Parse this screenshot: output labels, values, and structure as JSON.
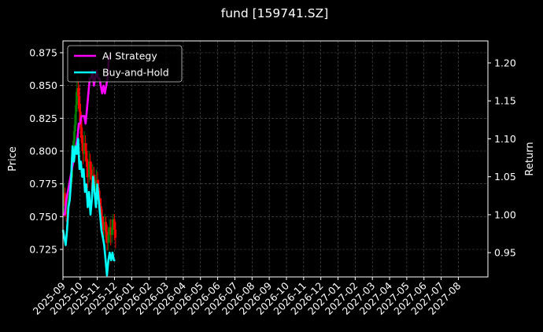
{
  "chart_data": {
    "type": "line",
    "title": "fund [159741.SZ]",
    "ylabel": "Price",
    "y2label": "Return",
    "ylim": [
      0.704,
      0.884
    ],
    "y2lim": [
      0.918,
      1.229
    ],
    "yticks": [
      "0.725",
      "0.750",
      "0.775",
      "0.800",
      "0.825",
      "0.850",
      "0.875"
    ],
    "y2ticks": [
      "0.95",
      "1.00",
      "1.05",
      "1.10",
      "1.15",
      "1.20"
    ],
    "xlim": [
      0,
      24.72
    ],
    "xticks": [
      "2025-09",
      "2025-10",
      "2025-11",
      "2025-12",
      "2026-01",
      "2026-02",
      "2026-03",
      "2026-04",
      "2026-05",
      "2026-06",
      "2026-07",
      "2026-08",
      "2026-09",
      "2026-10",
      "2026-11",
      "2026-12",
      "2027-01",
      "2027-02",
      "2027-03",
      "2027-04",
      "2027-05",
      "2027-06",
      "2027-07",
      "2027-08"
    ],
    "grid": true,
    "legend_position": "top-left",
    "background": "#000000",
    "up_color": "#008000",
    "down_color": "#ff0000",
    "candles": [
      [
        0.05,
        0.762,
        0.768,
        0.775,
        0.752
      ],
      [
        0.12,
        0.768,
        0.758,
        0.772,
        0.75
      ],
      [
        0.19,
        0.758,
        0.752,
        0.764,
        0.746
      ],
      [
        0.26,
        0.752,
        0.76,
        0.768,
        0.748
      ],
      [
        0.33,
        0.76,
        0.766,
        0.774,
        0.756
      ],
      [
        0.4,
        0.766,
        0.772,
        0.78,
        0.76
      ],
      [
        0.47,
        0.772,
        0.78,
        0.79,
        0.768
      ],
      [
        0.54,
        0.78,
        0.795,
        0.805,
        0.776
      ],
      [
        0.61,
        0.795,
        0.808,
        0.815,
        0.79
      ],
      [
        0.68,
        0.808,
        0.82,
        0.828,
        0.802
      ],
      [
        0.75,
        0.82,
        0.835,
        0.845,
        0.815
      ],
      [
        0.82,
        0.835,
        0.848,
        0.858,
        0.83
      ],
      [
        0.89,
        0.848,
        0.842,
        0.856,
        0.832
      ],
      [
        0.96,
        0.842,
        0.83,
        0.85,
        0.822
      ],
      [
        1.03,
        0.83,
        0.818,
        0.836,
        0.81
      ],
      [
        1.1,
        0.818,
        0.806,
        0.824,
        0.8
      ],
      [
        1.17,
        0.806,
        0.798,
        0.812,
        0.79
      ],
      [
        1.24,
        0.798,
        0.806,
        0.815,
        0.792
      ],
      [
        1.31,
        0.806,
        0.8,
        0.812,
        0.792
      ],
      [
        1.38,
        0.8,
        0.788,
        0.806,
        0.78
      ],
      [
        1.45,
        0.788,
        0.78,
        0.794,
        0.772
      ],
      [
        1.52,
        0.78,
        0.792,
        0.8,
        0.776
      ],
      [
        1.59,
        0.792,
        0.786,
        0.798,
        0.778
      ],
      [
        1.66,
        0.786,
        0.778,
        0.792,
        0.77
      ],
      [
        1.73,
        0.778,
        0.782,
        0.79,
        0.77
      ],
      [
        1.8,
        0.782,
        0.776,
        0.788,
        0.768
      ],
      [
        1.87,
        0.776,
        0.77,
        0.782,
        0.762
      ],
      [
        1.94,
        0.77,
        0.778,
        0.786,
        0.764
      ],
      [
        2.01,
        0.778,
        0.772,
        0.784,
        0.764
      ],
      [
        2.08,
        0.772,
        0.764,
        0.778,
        0.756
      ],
      [
        2.15,
        0.764,
        0.758,
        0.77,
        0.75
      ],
      [
        2.22,
        0.758,
        0.75,
        0.764,
        0.742
      ],
      [
        2.29,
        0.75,
        0.744,
        0.756,
        0.736
      ],
      [
        2.36,
        0.744,
        0.74,
        0.75,
        0.732
      ],
      [
        2.43,
        0.74,
        0.746,
        0.752,
        0.734
      ],
      [
        2.5,
        0.746,
        0.738,
        0.75,
        0.73
      ],
      [
        2.57,
        0.738,
        0.73,
        0.744,
        0.724
      ],
      [
        2.64,
        0.73,
        0.736,
        0.742,
        0.724
      ],
      [
        2.71,
        0.736,
        0.742,
        0.748,
        0.73
      ],
      [
        2.78,
        0.742,
        0.736,
        0.748,
        0.728
      ],
      [
        2.85,
        0.736,
        0.742,
        0.748,
        0.73
      ],
      [
        2.92,
        0.742,
        0.748,
        0.752,
        0.736
      ],
      [
        2.99,
        0.748,
        0.74,
        0.752,
        0.732
      ],
      [
        3.06,
        0.74,
        0.734,
        0.746,
        0.726
      ]
    ],
    "series": [
      {
        "name": "AI Strategy",
        "color": "#ff00ff",
        "x": [
          0.0,
          0.1,
          0.2,
          0.28,
          0.36,
          0.44,
          0.52,
          0.6,
          0.68,
          0.76,
          0.84,
          0.92,
          1.0,
          1.08,
          1.16,
          1.24,
          1.32,
          1.4,
          1.48,
          1.56,
          1.64,
          1.72,
          1.8,
          1.88,
          1.96,
          2.04,
          2.12,
          2.2,
          2.28,
          2.36,
          2.44,
          2.52,
          2.6,
          2.68
        ],
        "values": [
          1.0,
          1.0,
          1.02,
          1.03,
          1.04,
          1.05,
          1.06,
          1.07,
          1.08,
          1.09,
          1.1,
          1.12,
          1.12,
          1.13,
          1.13,
          1.13,
          1.12,
          1.14,
          1.16,
          1.18,
          1.18,
          1.19,
          1.17,
          1.18,
          1.19,
          1.18,
          1.18,
          1.17,
          1.16,
          1.17,
          1.16,
          1.17,
          1.18,
          1.21
        ]
      },
      {
        "name": "Buy-and-Hold",
        "color": "#00ffff",
        "x": [
          0.0,
          0.08,
          0.16,
          0.24,
          0.32,
          0.4,
          0.48,
          0.56,
          0.64,
          0.72,
          0.8,
          0.88,
          0.96,
          1.04,
          1.12,
          1.2,
          1.28,
          1.36,
          1.44,
          1.52,
          1.6,
          1.68,
          1.76,
          1.84,
          1.92,
          2.0,
          2.08,
          2.16,
          2.24,
          2.32,
          2.4,
          2.48,
          2.56,
          2.64,
          2.72,
          2.8,
          2.88,
          2.96,
          3.04
        ],
        "values": [
          0.98,
          0.97,
          0.96,
          0.98,
          1.01,
          1.02,
          1.05,
          1.09,
          1.07,
          1.09,
          1.08,
          1.1,
          1.06,
          1.07,
          1.05,
          1.06,
          1.03,
          1.04,
          1.01,
          1.03,
          1.0,
          1.02,
          1.05,
          1.03,
          1.01,
          1.04,
          1.02,
          1.0,
          0.98,
          0.97,
          0.96,
          0.94,
          0.92,
          0.94,
          0.95,
          0.94,
          0.95,
          0.94,
          0.94
        ]
      }
    ]
  }
}
